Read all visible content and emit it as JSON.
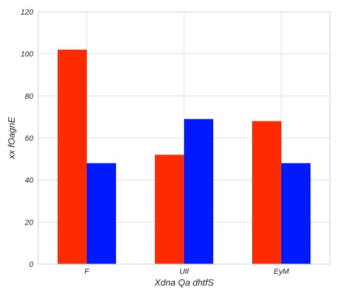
{
  "chart_data": {
    "type": "bar",
    "categories": [
      "F",
      "Utl",
      "EyM"
    ],
    "series": [
      {
        "values": [
          102,
          52,
          68
        ],
        "color": "#ff2a00"
      },
      {
        "values": [
          48,
          69,
          48
        ],
        "color": "#0019ff"
      }
    ],
    "xlabel": "Xdna Qa dhtfS",
    "ylabel": "xx fOagnE",
    "ylim": [
      0,
      120
    ],
    "yticks": [
      0,
      20,
      40,
      60,
      80,
      100,
      120
    ],
    "grid": true,
    "legend": "none"
  }
}
